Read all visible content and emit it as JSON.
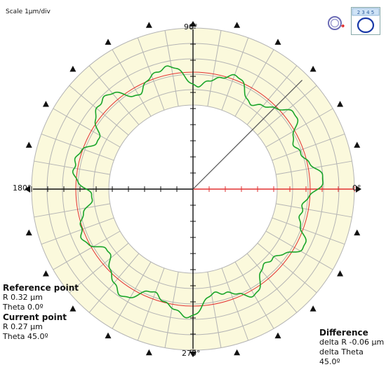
{
  "scale_label": "Scale 1µm/div",
  "angle_labels": {
    "deg90": "90°",
    "deg180": "180°",
    "deg0": "0°",
    "deg270": "270°"
  },
  "reference": {
    "title": "Reference point",
    "r": "R 0.32 µm",
    "theta": "Theta 0.0º"
  },
  "current": {
    "title": "Current point",
    "r": "R 0.27 µm",
    "theta": "Theta 45.0º"
  },
  "difference": {
    "title": "Difference",
    "dr": "delta R -0.06 µm",
    "dtheta": "delta Theta 45.0º"
  },
  "tools": {
    "left_icon": "circle-fit-icon",
    "right_icon": "ruler-circle-icon",
    "ruler_text": "2 3 4 5"
  },
  "colors": {
    "ring": "#fbf9dc",
    "grid": "#b4b4b4",
    "profile": "#1aa52a",
    "reference_circle": "#e23030",
    "angle_line": "#e23030",
    "cursor_line": "#555555"
  },
  "chart_data": {
    "type": "polar",
    "reference_point": {
      "r_um": 0.32,
      "theta_deg": 0.0
    },
    "current_point": {
      "r_um": 0.27,
      "theta_deg": 45.0
    },
    "difference": {
      "delta_r_um": -0.06,
      "delta_theta_deg": 45.0
    },
    "profile": {
      "lobes": 11,
      "mean_r_um": 0.0,
      "amplitude_um": 0.3
    }
  }
}
